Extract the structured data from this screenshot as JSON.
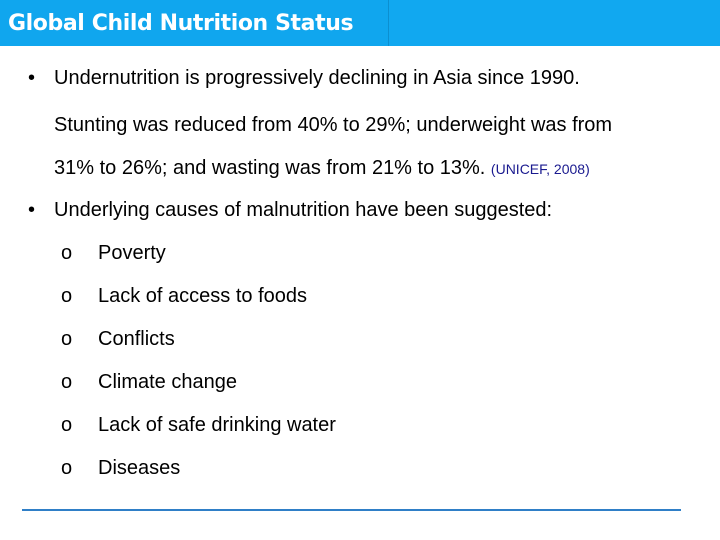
{
  "slide": {
    "title": "Global Child Nutrition Status",
    "bullets": [
      {
        "marker": "•",
        "lines": [
          "Undernutrition is progressively declining in Asia since 1990.",
          "Stunting was reduced from 40% to 29%; underweight was from",
          "31% to 26%; and wasting was from 21% to 13%."
        ],
        "citation": "(UNICEF, 2008)"
      },
      {
        "marker": "•",
        "lines": [
          "Underlying causes of malnutrition have been suggested:"
        ],
        "sub_items": [
          {
            "marker": "o",
            "label": "Poverty"
          },
          {
            "marker": "o",
            "label": "Lack of access to foods"
          },
          {
            "marker": "o",
            "label": "Conflicts"
          },
          {
            "marker": "o",
            "label": "Climate change"
          },
          {
            "marker": "o",
            "label": "Lack of safe drinking water"
          },
          {
            "marker": "o",
            "label": "Diseases"
          }
        ]
      }
    ]
  },
  "colors": {
    "title_bar": "#11a8f0",
    "title_text": "#ffffff",
    "rule": "#2f7fc7",
    "citation": "#1a1a8f"
  }
}
